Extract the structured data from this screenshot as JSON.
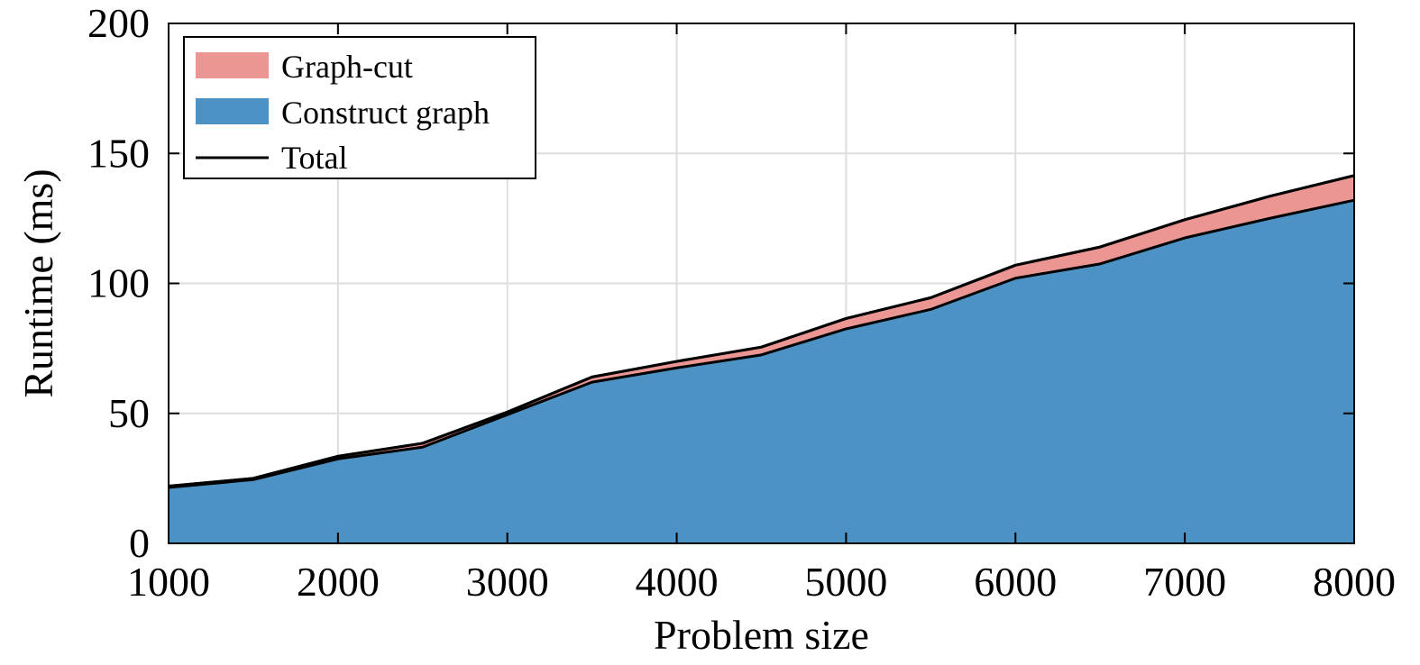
{
  "chart_data": {
    "type": "area",
    "title": "",
    "xlabel": "Problem size",
    "ylabel": "Runtime (ms)",
    "xlim": [
      1000,
      8000
    ],
    "ylim": [
      0,
      200
    ],
    "x_ticks": [
      1000,
      2000,
      3000,
      4000,
      5000,
      6000,
      7000,
      8000
    ],
    "y_ticks": [
      0,
      50,
      100,
      150,
      200
    ],
    "grid": true,
    "legend_position": "top-left",
    "x": [
      1000,
      1500,
      2000,
      2500,
      3000,
      3500,
      4000,
      4500,
      5000,
      5500,
      6000,
      6500,
      7000,
      7500,
      8000
    ],
    "series": [
      {
        "name": "Construct graph",
        "kind": "stacked-area",
        "color": "#4d92c4",
        "values": [
          21.5,
          24.5,
          32.5,
          37,
          49.5,
          62,
          67.5,
          72.5,
          82.5,
          90,
          102,
          107.5,
          117.5,
          125,
          132
        ]
      },
      {
        "name": "Graph-cut",
        "kind": "stacked-area",
        "color": "#ec9694",
        "values": [
          0.5,
          0.5,
          1,
          1.5,
          1,
          2,
          2.5,
          3,
          4,
          4.5,
          5,
          6.5,
          7,
          8.5,
          9.5
        ]
      },
      {
        "name": "Total",
        "kind": "line",
        "color": "#000000",
        "values": [
          22,
          25,
          33.5,
          38.5,
          50.5,
          64,
          70,
          75.5,
          86.5,
          94.5,
          107,
          114,
          124.5,
          133.5,
          141.5
        ]
      }
    ],
    "legend_order": [
      "Graph-cut",
      "Construct graph",
      "Total"
    ]
  }
}
